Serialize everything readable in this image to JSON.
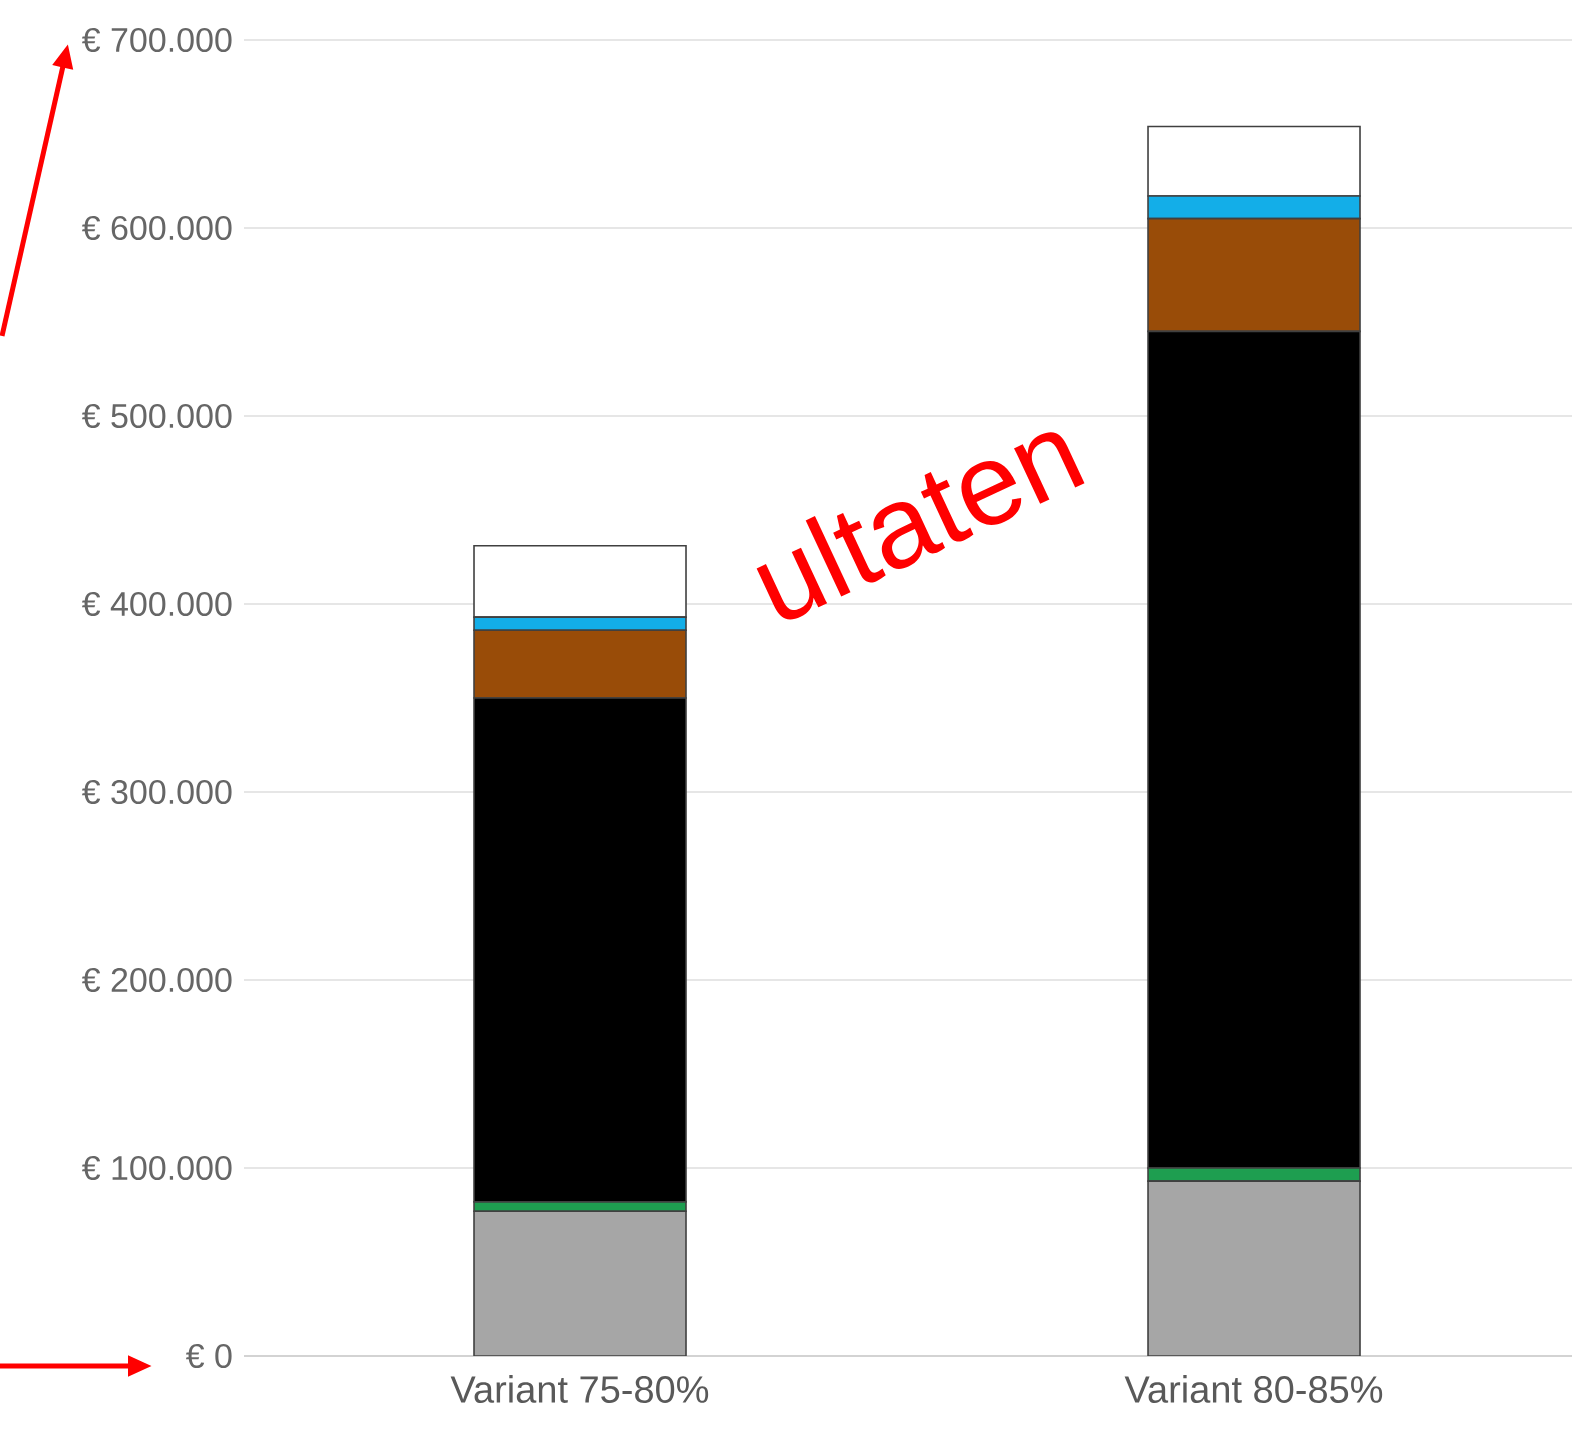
{
  "chart_data": {
    "type": "bar",
    "stacked": true,
    "categories": [
      "Variant 75-80%",
      "Variant 80-85%"
    ],
    "series": [
      {
        "color": "#a6a6a6",
        "values": [
          77000,
          93000
        ]
      },
      {
        "color": "#1e9e50",
        "values": [
          5000,
          7000
        ]
      },
      {
        "color": "#000000",
        "values": [
          268000,
          445000
        ]
      },
      {
        "color": "#994c08",
        "values": [
          36000,
          60000
        ]
      },
      {
        "color": "#13aee8",
        "values": [
          7000,
          12000
        ]
      },
      {
        "color": "#ffffff",
        "values": [
          38000,
          37000
        ]
      }
    ],
    "ylim": [
      0,
      700000
    ],
    "yticks": [
      {
        "value": 0,
        "label": "€ 0"
      },
      {
        "value": 100000,
        "label": "€ 100.000"
      },
      {
        "value": 200000,
        "label": "€ 200.000"
      },
      {
        "value": 300000,
        "label": "€ 300.000"
      },
      {
        "value": 400000,
        "label": "€ 400.000"
      },
      {
        "value": 500000,
        "label": "€ 500.000"
      },
      {
        "value": 600000,
        "label": "€ 600.000"
      },
      {
        "value": 700000,
        "label": "€ 700.000"
      }
    ],
    "grid": "y",
    "annotations": [
      "ultaten"
    ]
  }
}
